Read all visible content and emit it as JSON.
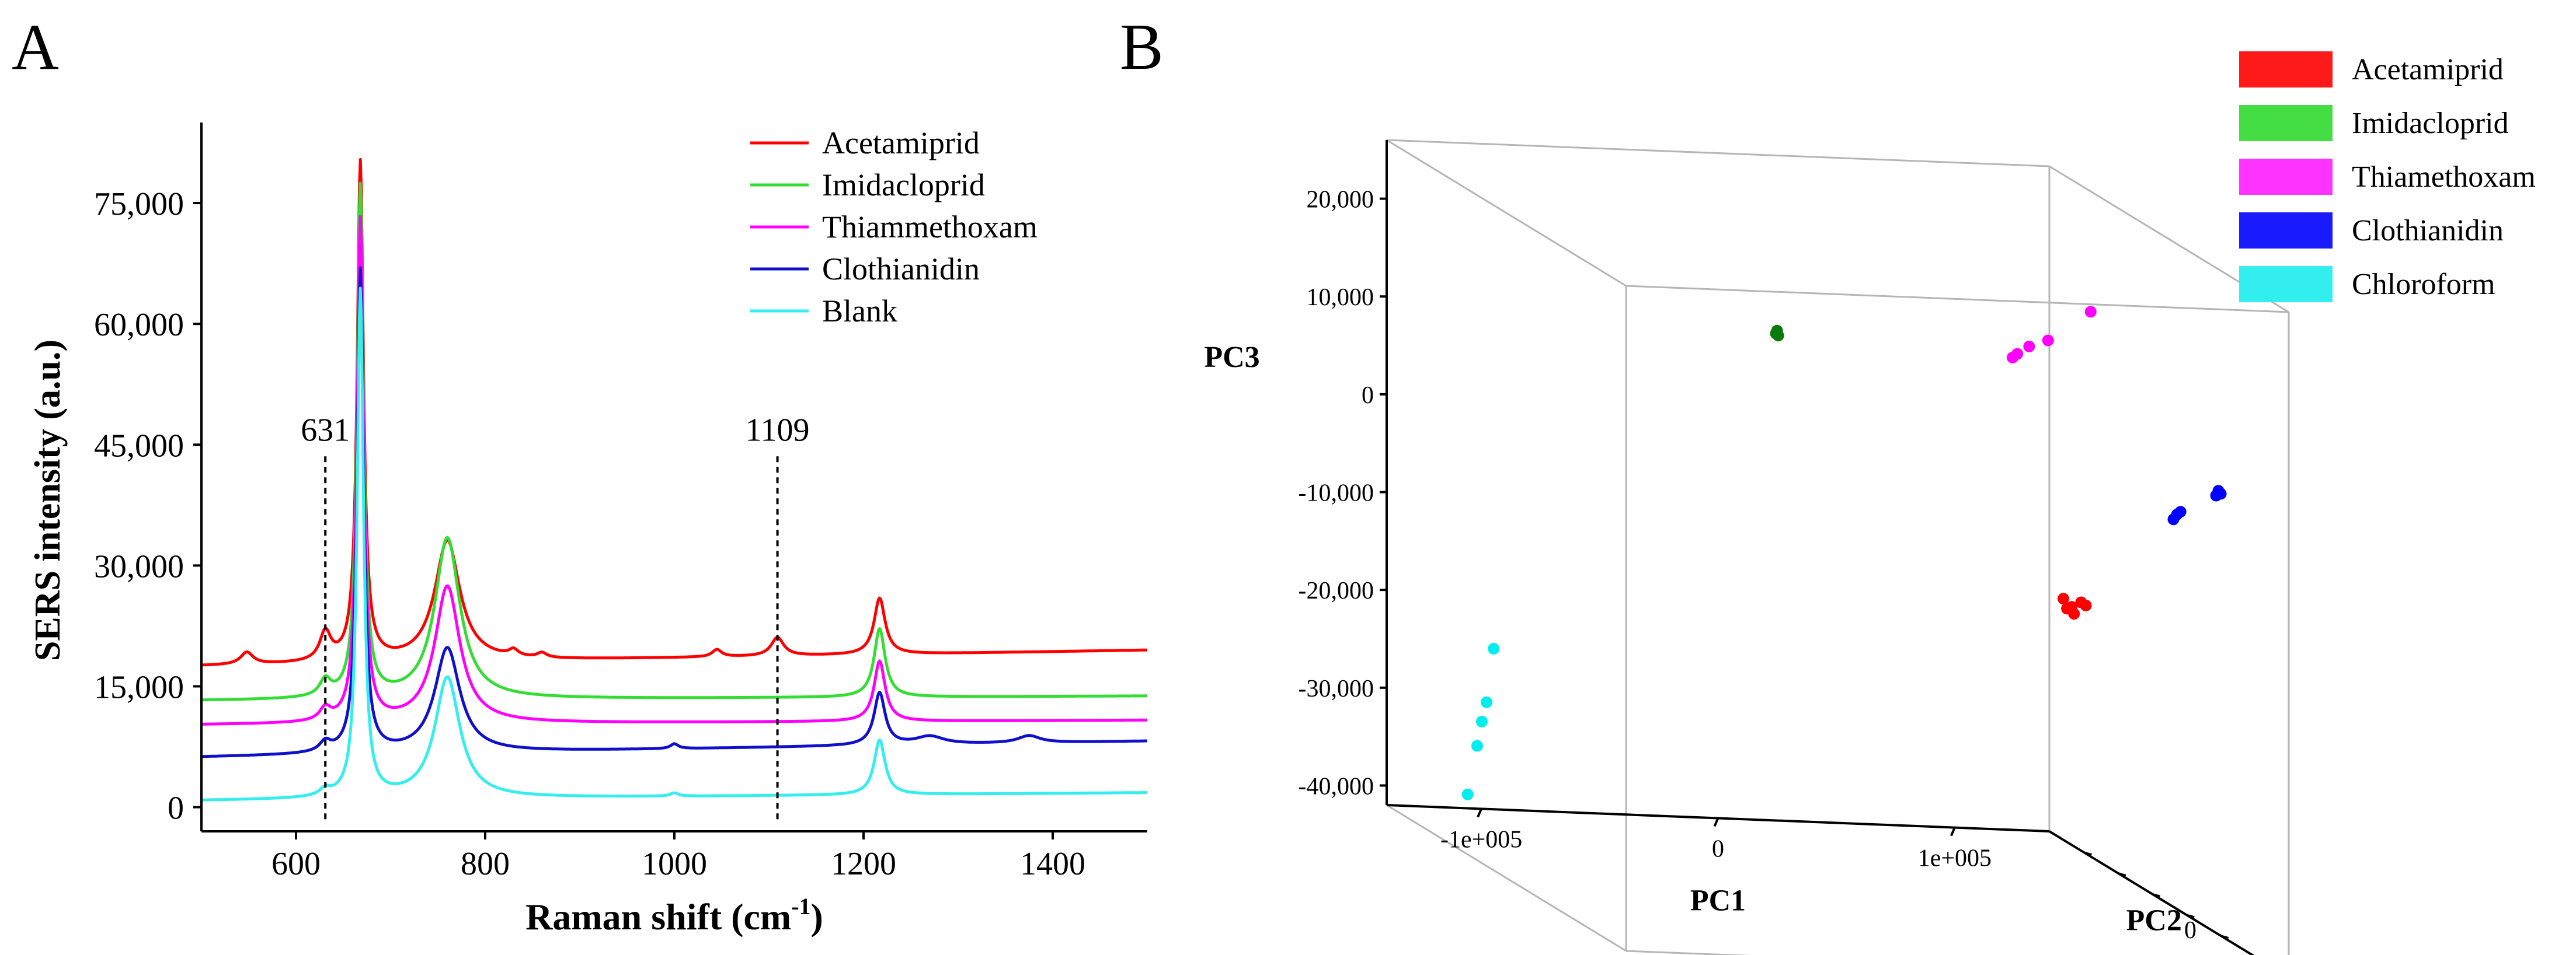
{
  "chart_data": [
    {
      "type": "line",
      "panel_label": "A",
      "xlabel": "Raman shift (cm",
      "xlabel_sup": "-1",
      "xlabel_end": ")",
      "ylabel": "SERS intensity (a.u.)",
      "xlim": [
        500,
        1500
      ],
      "ylim": [
        -3000,
        85000
      ],
      "xticks": [
        600,
        800,
        1000,
        1200,
        1400
      ],
      "xtick_labels": [
        "600",
        "800",
        "1000",
        "1200",
        "1400"
      ],
      "yticks": [
        0,
        15000,
        30000,
        45000,
        60000,
        75000
      ],
      "ytick_labels": [
        "0",
        "15,000",
        "30,000",
        "45,000",
        "60,000",
        "75,000"
      ],
      "annotations": [
        {
          "x": 631,
          "label": "631",
          "ymin": -1500,
          "ymax": 44000,
          "label_y": 45500
        },
        {
          "x": 1109,
          "label": "1109",
          "ymin": -1500,
          "ymax": 44000,
          "label_y": 45500
        }
      ],
      "legend_position": "top-right",
      "series": [
        {
          "name": "Acetamiprid",
          "color": "#ff0000",
          "baseline": 17500,
          "end_value": 19500,
          "peaks": [
            [
              548,
              1500,
              8
            ],
            [
              631,
              3500,
              7
            ],
            [
              668,
              62000,
              4
            ],
            [
              760,
              15000,
              16
            ],
            [
              830,
              800,
              6
            ],
            [
              860,
              600,
              6
            ],
            [
              1045,
              900,
              6
            ],
            [
              1109,
              2300,
              8
            ],
            [
              1217,
              7000,
              7
            ]
          ]
        },
        {
          "name": "Imidacloprid",
          "color": "#33dd33",
          "baseline": 13200,
          "end_value": 13800,
          "peaks": [
            [
              631,
              2000,
              7
            ],
            [
              668,
              63500,
              4
            ],
            [
              760,
              20000,
              16
            ],
            [
              1217,
              8500,
              7
            ]
          ]
        },
        {
          "name": "Thiammethoxam",
          "color": "#ff00ff",
          "baseline": 10200,
          "end_value": 10800,
          "peaks": [
            [
              631,
              1500,
              7
            ],
            [
              668,
              62500,
              4
            ],
            [
              760,
              17000,
              16
            ],
            [
              1217,
              7500,
              7
            ]
          ]
        },
        {
          "name": "Clothianidin",
          "color": "#1010cc",
          "baseline": 6200,
          "end_value": 8200,
          "peaks": [
            [
              631,
              1200,
              7
            ],
            [
              668,
              60000,
              4
            ],
            [
              760,
              13000,
              16
            ],
            [
              1000,
              600,
              5
            ],
            [
              1217,
              6500,
              7
            ],
            [
              1270,
              1000,
              18
            ],
            [
              1375,
              900,
              14
            ]
          ]
        },
        {
          "name": "Blank",
          "color": "#33eeee",
          "baseline": 800,
          "end_value": 1800,
          "peaks": [
            [
              631,
              800,
              7
            ],
            [
              668,
              63000,
              4
            ],
            [
              760,
              15000,
              16
            ],
            [
              1000,
              400,
              5
            ],
            [
              1217,
              6800,
              7
            ]
          ]
        }
      ]
    },
    {
      "type": "scatter",
      "panel_label": "B",
      "projection": "3d",
      "xlabel": "PC1",
      "ylabel": "PC2",
      "zlabel": "PC3",
      "xlim": [
        -140000,
        140000
      ],
      "ylim": [
        -60000,
        60000
      ],
      "zlim": [
        -42000,
        26000
      ],
      "xticks": [
        -100000,
        0,
        100000
      ],
      "xtick_labels": [
        "-1e+005",
        "0",
        "1e+005"
      ],
      "yticks": [
        0
      ],
      "ytick_labels": [
        "0"
      ],
      "zticks": [
        -40000,
        -30000,
        -20000,
        -10000,
        0,
        10000,
        20000
      ],
      "ztick_labels": [
        "-40,000",
        "-30,000",
        "-20,000",
        "-10,000",
        "0",
        "10,000",
        "20,000"
      ],
      "legend_position": "right",
      "series": [
        {
          "name": "Acetamiprid",
          "color": "#ff0000",
          "legend_color": "#ff1a1a",
          "points": [
            [
              137500,
              -50000,
              -17000
            ],
            [
              139000,
              -50000,
              -18000
            ],
            [
              141000,
              -50000,
              -17800
            ],
            [
              142000,
              -50000,
              -18500
            ],
            [
              145000,
              -50000,
              -17300
            ],
            [
              147000,
              -50000,
              -17600
            ]
          ]
        },
        {
          "name": "Imidacloprid",
          "color": "#0a7a0a",
          "legend_color": "#44dd44",
          "points": [
            [
              -75000,
              58000,
              21500
            ],
            [
              -74500,
              58000,
              21800
            ],
            [
              -74000,
              58000,
              21300
            ]
          ]
        },
        {
          "name": "Thiamethoxam",
          "color": "#ff00ff",
          "legend_color": "#ff33ff",
          "points": [
            [
              25000,
              58000,
              20000
            ],
            [
              27000,
              58000,
              20400
            ],
            [
              32000,
              58000,
              21200
            ],
            [
              40000,
              58000,
              21900
            ],
            [
              58000,
              58000,
              25000
            ]
          ]
        },
        {
          "name": "Clothianidin",
          "color": "#0000ff",
          "legend_color": "#1a1aff",
          "points": [
            [
              125000,
              20000,
              -300
            ],
            [
              126500,
              20000,
              200
            ],
            [
              128000,
              20000,
              500
            ],
            [
              143000,
              20000,
              2300
            ],
            [
              144000,
              20000,
              2800
            ],
            [
              145000,
              20000,
              2500
            ]
          ]
        },
        {
          "name": "Chloroform",
          "color": "#00eeee",
          "legend_color": "#33eeee",
          "points": [
            [
              -110000,
              -55000,
              -40000
            ],
            [
              -106000,
              -55000,
              -35000
            ],
            [
              -104000,
              -55000,
              -32500
            ],
            [
              -102000,
              -55000,
              -30500
            ],
            [
              -99000,
              -55000,
              -25000
            ]
          ]
        }
      ]
    }
  ]
}
